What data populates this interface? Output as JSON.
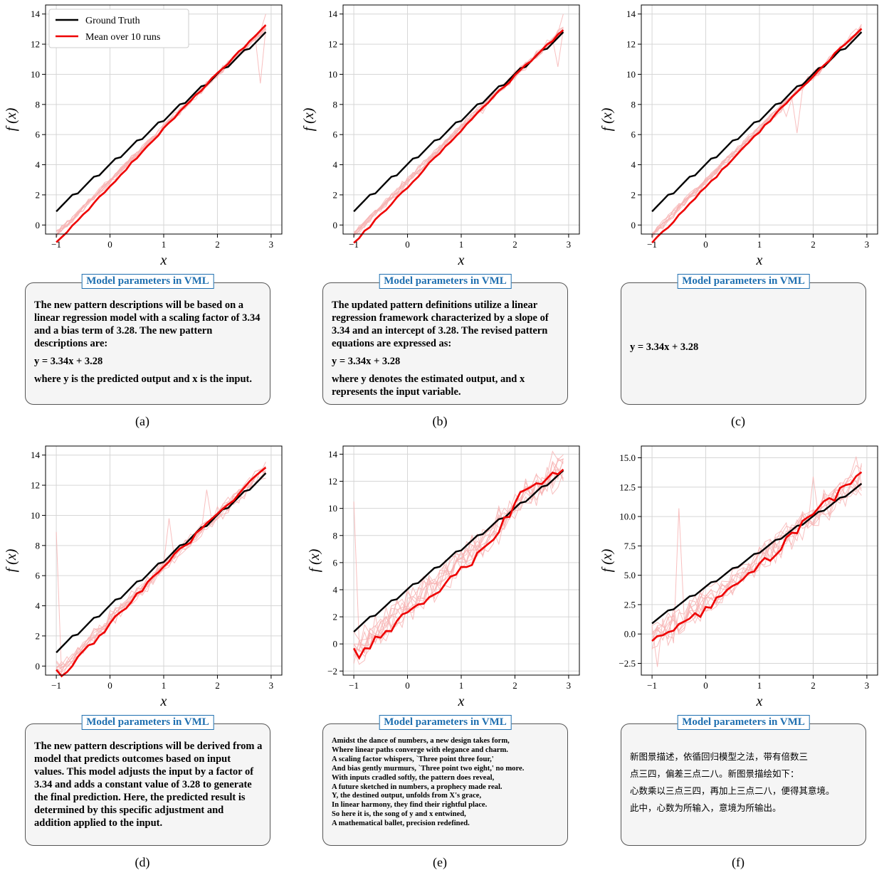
{
  "box_title": "Model parameters in VML",
  "legend": {
    "ground_truth": "Ground Truth",
    "mean": "Mean over 10 runs"
  },
  "axis": {
    "xlabel": "x",
    "ylabel": "f (x)"
  },
  "colors": {
    "ground_truth": "#000000",
    "mean": "#ee0000",
    "runs": "#f7b4b4"
  },
  "panels": [
    {
      "caption": "(a)",
      "box_style": "normal",
      "paragraphs": [
        "The new pattern descriptions will be based on a linear regression model with a scaling factor of 3.34 and a bias term of 3.28. The new pattern descriptions are:",
        "y = 3.34x + 3.28",
        "where y is the predicted output and x is the input."
      ]
    },
    {
      "caption": "(b)",
      "box_style": "normal",
      "paragraphs": [
        "The updated pattern definitions utilize a linear regression framework characterized by a slope of 3.34 and an intercept of 3.28. The revised pattern equations are expressed as:",
        "y = 3.34x + 3.28",
        "where y denotes the estimated output, and x represents the input variable."
      ]
    },
    {
      "caption": "(c)",
      "box_style": "center",
      "paragraphs": [
        "y = 3.34x + 3.28"
      ]
    },
    {
      "caption": "(d)",
      "box_style": "normal",
      "paragraphs": [
        "The new pattern descriptions will be derived from a model that predicts outcomes based on input values. This model adjusts the input by a factor of 3.34 and adds a constant value of 3.28 to generate the final prediction. Here, the predicted result is determined by this specific adjustment and addition applied to the input."
      ]
    },
    {
      "caption": "(e)",
      "box_style": "small",
      "paragraphs": [
        "Amidst the dance of numbers, a new design takes form,",
        "Where linear paths converge with elegance and charm.",
        "A scaling factor whispers, `Three point three four,'",
        "And bias gently murmurs, `Three point two eight,' no more.",
        "With inputs cradled softly, the pattern does reveal,",
        "A future sketched in numbers, a prophecy made real.",
        "Y, the destined output, unfolds from X's grace,",
        "In linear harmony, they find their rightful place.",
        "So here it is, the song of y and x entwined,",
        "A mathematical ballet, precision redefined."
      ]
    },
    {
      "caption": "(f)",
      "box_style": "cjk",
      "paragraphs": [
        "新图景描述，依循回归模型之法，带有倍数三",
        "点三四，偏差三点二八。新图景描绘如下：",
        "心数乘以三点三四，再加上三点二八，便得其意境。",
        "此中，心数为所输入，意境为所输出。"
      ]
    }
  ],
  "chart_data": [
    {
      "type": "line",
      "panel": "a",
      "xlim": [
        -1.2,
        3.2
      ],
      "ylim": [
        -0.6,
        14.6
      ],
      "xticks": [
        -1,
        0,
        1,
        2,
        3
      ],
      "xtick_labels": [
        "−1",
        "0",
        "1",
        "2",
        "3"
      ],
      "yticks": [
        0,
        2,
        4,
        6,
        8,
        10,
        12,
        14
      ],
      "ytick_labels": [
        "0",
        "2",
        "4",
        "6",
        "8",
        "10",
        "12",
        "14"
      ],
      "grid": true,
      "legend": "top-left",
      "noise": 0.25,
      "spikes": [
        [
          2.85,
          9.4
        ],
        [
          2.95,
          14.0
        ]
      ],
      "mean_offset": [
        [
          -1.0,
          -1.15
        ],
        [
          1.4,
          -0.05
        ],
        [
          3.0,
          0.3
        ]
      ]
    },
    {
      "type": "line",
      "panel": "b",
      "xlim": [
        -1.2,
        3.2
      ],
      "ylim": [
        -0.6,
        14.6
      ],
      "xticks": [
        -1,
        0,
        1,
        2,
        3
      ],
      "xtick_labels": [
        "−1",
        "0",
        "1",
        "2",
        "3"
      ],
      "yticks": [
        0,
        2,
        4,
        6,
        8,
        10,
        12,
        14
      ],
      "ytick_labels": [
        "0",
        "2",
        "4",
        "6",
        "8",
        "10",
        "12",
        "14"
      ],
      "grid": true,
      "noise": 0.3,
      "spikes": [
        [
          1.45,
          7.4
        ],
        [
          2.85,
          10.5
        ],
        [
          2.95,
          14.0
        ]
      ],
      "mean_offset": [
        [
          -1.0,
          -1.15
        ],
        [
          1.6,
          -0.1
        ],
        [
          3.0,
          0.0
        ]
      ]
    },
    {
      "type": "line",
      "panel": "c",
      "xlim": [
        -1.2,
        3.2
      ],
      "ylim": [
        -0.6,
        14.6
      ],
      "xticks": [
        -1,
        0,
        1,
        2,
        3
      ],
      "xtick_labels": [
        "−1",
        "0",
        "1",
        "2",
        "3"
      ],
      "yticks": [
        0,
        2,
        4,
        6,
        8,
        10,
        12,
        14
      ],
      "ytick_labels": [
        "0",
        "2",
        "4",
        "6",
        "8",
        "10",
        "12",
        "14"
      ],
      "grid": true,
      "noise": 0.3,
      "spikes": [
        [
          1.75,
          6.1
        ],
        [
          1.55,
          7.2
        ]
      ],
      "mean_offset": [
        [
          -1.0,
          -1.15
        ],
        [
          1.7,
          -0.15
        ],
        [
          3.0,
          0.15
        ]
      ]
    },
    {
      "type": "line",
      "panel": "d",
      "xlim": [
        -1.2,
        3.2
      ],
      "ylim": [
        -0.6,
        14.6
      ],
      "xticks": [
        -1,
        0,
        1,
        2,
        3
      ],
      "xtick_labels": [
        "−1",
        "0",
        "1",
        "2",
        "3"
      ],
      "yticks": [
        0,
        2,
        4,
        6,
        8,
        10,
        12,
        14
      ],
      "ytick_labels": [
        "0",
        "2",
        "4",
        "6",
        "8",
        "10",
        "12",
        "14"
      ],
      "grid": true,
      "noise": 0.55,
      "spikes": [
        [
          -1.0,
          8.9
        ],
        [
          1.15,
          9.8
        ],
        [
          1.85,
          11.7
        ]
      ],
      "mean_offset": [
        [
          -1.0,
          -0.2
        ],
        [
          -0.9,
          -0.95
        ],
        [
          1.0,
          0.0
        ],
        [
          3.0,
          0.2
        ]
      ]
    },
    {
      "type": "line",
      "panel": "e",
      "xlim": [
        -1.2,
        3.2
      ],
      "ylim": [
        -2.3,
        14.6
      ],
      "xticks": [
        -1,
        0,
        1,
        2,
        3
      ],
      "xtick_labels": [
        "−1",
        "0",
        "1",
        "2",
        "3"
      ],
      "yticks": [
        -2,
        0,
        2,
        4,
        6,
        8,
        10,
        12,
        14
      ],
      "ytick_labels": [
        "−2",
        "0",
        "2",
        "4",
        "6",
        "8",
        "10",
        "12",
        "14"
      ],
      "grid": true,
      "noise": 1.3,
      "spikes": [
        [
          -1.0,
          10.5
        ],
        [
          -0.95,
          -1.5
        ],
        [
          2.75,
          14.2
        ]
      ],
      "mean_offset": [
        [
          -1.0,
          0.0
        ],
        [
          -0.9,
          -1.0
        ],
        [
          0.5,
          -1.1
        ],
        [
          1.4,
          -1.2
        ],
        [
          2.2,
          0.8
        ],
        [
          3.0,
          0.0
        ]
      ]
    },
    {
      "type": "line",
      "panel": "f",
      "xlim": [
        -1.2,
        3.2
      ],
      "ylim": [
        -3.5,
        16.0
      ],
      "xticks": [
        -1,
        0,
        1,
        2,
        3
      ],
      "xtick_labels": [
        "−1",
        "0",
        "1",
        "2",
        "3"
      ],
      "yticks": [
        -2.5,
        0,
        2.5,
        5,
        7.5,
        10,
        12.5,
        15
      ],
      "ytick_labels": [
        "−2.5",
        "0.0",
        "2.5",
        "5.0",
        "7.5",
        "10.0",
        "12.5",
        "15.0"
      ],
      "grid": true,
      "noise": 1.4,
      "spikes": [
        [
          -0.45,
          10.7
        ],
        [
          -0.9,
          -2.8
        ],
        [
          2.0,
          13.4
        ],
        [
          2.85,
          15.1
        ]
      ],
      "mean_offset": [
        [
          -1.0,
          -0.5
        ],
        [
          0.0,
          -1.3
        ],
        [
          1.0,
          -0.9
        ],
        [
          2.0,
          0.2
        ],
        [
          3.0,
          0.7
        ]
      ]
    }
  ]
}
